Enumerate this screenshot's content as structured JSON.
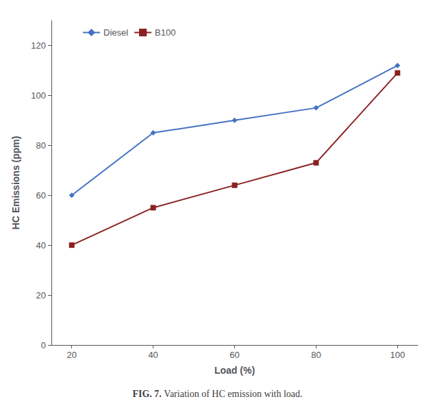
{
  "chart_data": {
    "type": "line",
    "x": [
      20,
      40,
      60,
      80,
      100
    ],
    "series": [
      {
        "name": "Diesel",
        "color": "#4472C4",
        "marker": "diamond",
        "values": [
          60,
          85,
          90,
          95,
          112
        ]
      },
      {
        "name": "B100",
        "color": "#8B2020",
        "marker": "square",
        "values": [
          40,
          55,
          64,
          73,
          109
        ]
      }
    ],
    "xlabel": "Load (%)",
    "ylabel": "HC Emissions (ppm)",
    "xlim": [
      15,
      105
    ],
    "xticks": [
      20,
      40,
      60,
      80,
      100
    ],
    "ylim": [
      0,
      130
    ],
    "yticks": [
      0,
      20,
      40,
      60,
      80,
      100,
      120
    ],
    "grid": false,
    "legend": "upper left",
    "annotations": [
      "FIG. 7.",
      "Variation of HC emission with load."
    ]
  }
}
